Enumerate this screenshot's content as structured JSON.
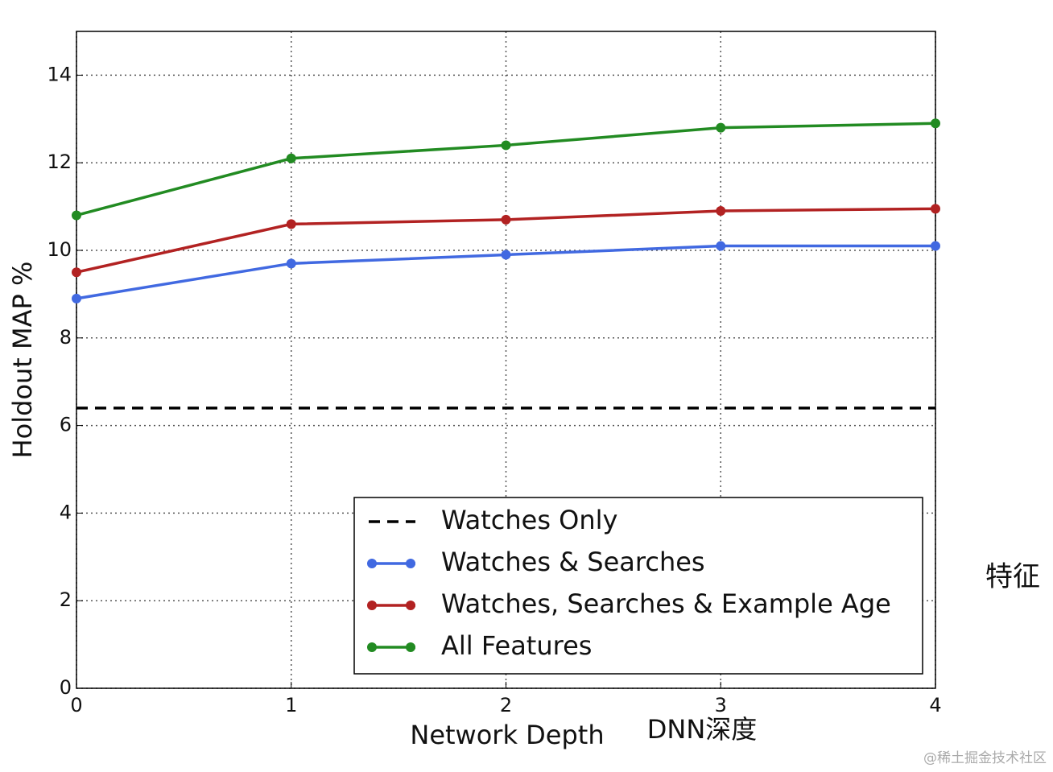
{
  "chart_data": {
    "type": "line",
    "x_label": "Network Depth",
    "y_label": "Holdout MAP %",
    "x": [
      0,
      1,
      2,
      3,
      4
    ],
    "series": [
      {
        "name": "Watches Only",
        "color": "#000000",
        "linestyle": "dashed",
        "marker": "none",
        "values": [
          6.4,
          6.4,
          6.4,
          6.4,
          6.4
        ]
      },
      {
        "name": "Watches & Searches",
        "color": "#4169e1",
        "linestyle": "solid",
        "marker": "o",
        "values": [
          8.9,
          9.7,
          9.9,
          10.1,
          10.1
        ]
      },
      {
        "name": "Watches, Searches & Example Age",
        "color": "#b22222",
        "linestyle": "solid",
        "marker": "o",
        "values": [
          9.5,
          10.6,
          10.7,
          10.9,
          10.95
        ]
      },
      {
        "name": "All Features",
        "color": "#228b22",
        "linestyle": "solid",
        "marker": "o",
        "values": [
          10.8,
          12.1,
          12.4,
          12.8,
          12.9
        ]
      }
    ],
    "xlim": [
      0,
      4
    ],
    "xticks": [
      0,
      1,
      2,
      3,
      4
    ],
    "ylim": [
      0,
      15
    ],
    "yticks": [
      0,
      2,
      4,
      6,
      8,
      10,
      12,
      14
    ],
    "grid": true,
    "legend": "lower right",
    "annotations": [
      "特征",
      "DNN深度",
      "@稀土掘金技术社区"
    ]
  }
}
